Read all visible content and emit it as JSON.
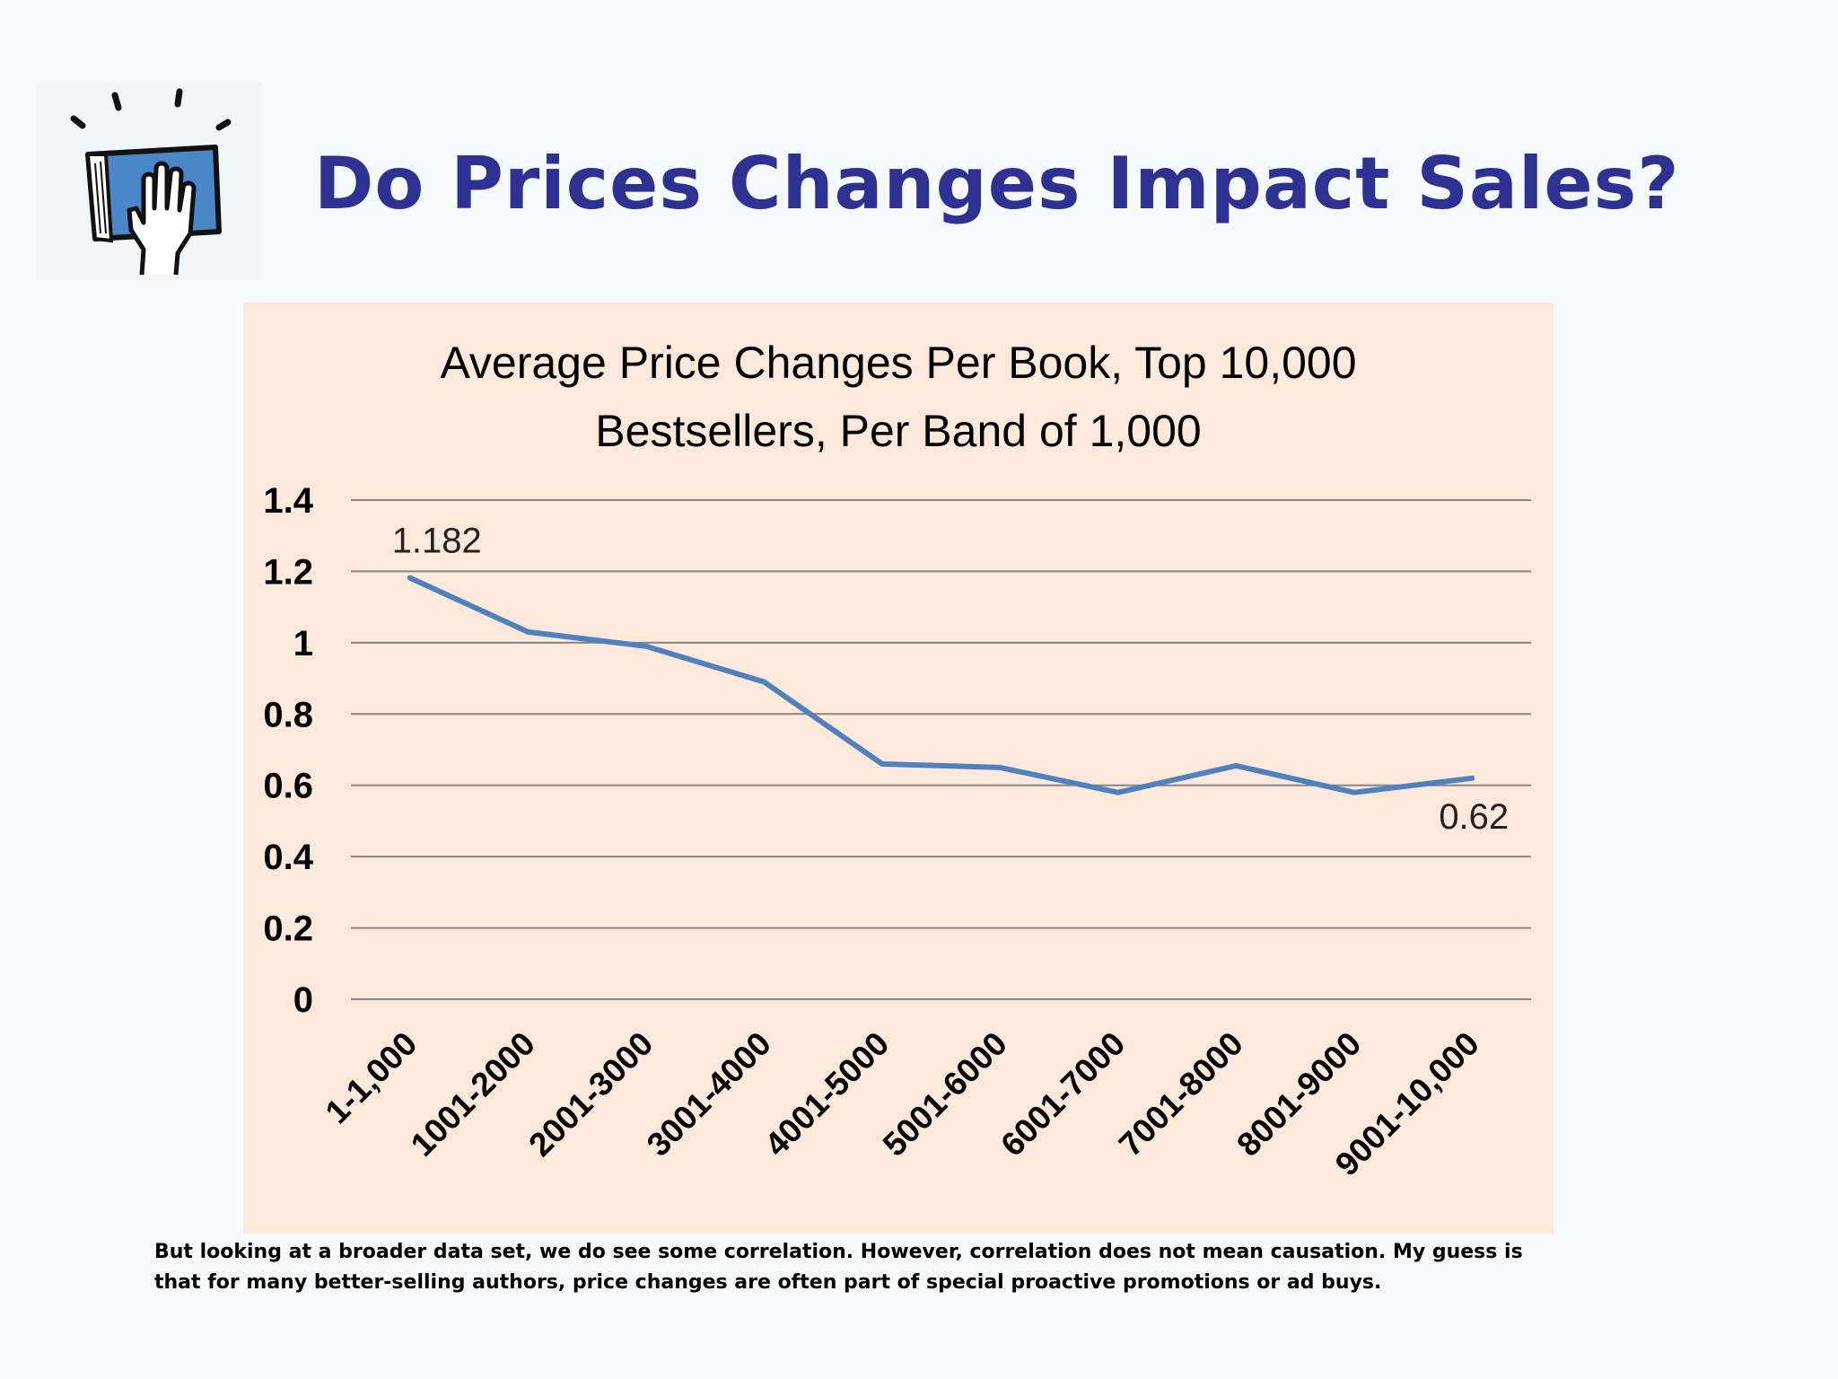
{
  "slide": {
    "title": "Do Prices Changes Impact Sales?",
    "logo_icon": "hand-on-book-icon",
    "caption_lines": [
      "But looking at a broader data set, we do see some correlation.  However, correlation does not mean causation.  My guess is",
      "that for many better-selling authors, price changes are often part of special proactive promotions or ad buys."
    ]
  },
  "colors": {
    "title": "#2e3192",
    "chart_background": "#fde9dc",
    "line": "#4f81bd",
    "gridline": "#868686"
  },
  "chart_data": {
    "type": "line",
    "title_lines": [
      "Average Price Changes Per Book, Top 10,000",
      "Bestsellers, Per Band of 1,000"
    ],
    "categories": [
      "1-1,000",
      "1001-2000",
      "2001-3000",
      "3001-4000",
      "4001-5000",
      "5001-6000",
      "6001-7000",
      "7001-8000",
      "8001-9000",
      "9001-10,000"
    ],
    "series": [
      {
        "values": [
          1.182,
          1.03,
          0.99,
          0.89,
          0.66,
          0.65,
          0.58,
          0.655,
          0.58,
          0.62
        ]
      }
    ],
    "data_labels": [
      {
        "index": 0,
        "text": "1.182"
      },
      {
        "index": 9,
        "text": "0.62"
      }
    ],
    "ylim": [
      0,
      1.4
    ],
    "yticks": [
      0,
      0.2,
      0.4,
      0.6,
      0.8,
      1,
      1.2,
      1.4
    ],
    "ytick_labels": [
      "0",
      "0.2",
      "0.4",
      "0.6",
      "0.8",
      "1",
      "1.2",
      "1.4"
    ],
    "grid": true,
    "legend": "none"
  }
}
